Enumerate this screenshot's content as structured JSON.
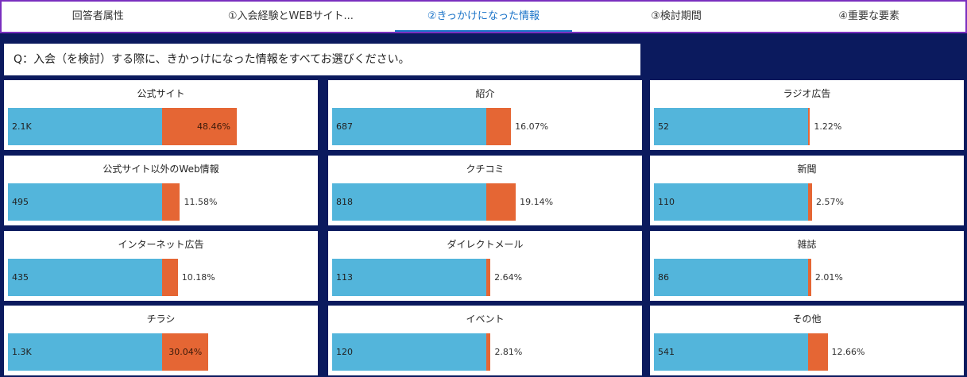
{
  "tabs": [
    "回答者属性",
    "①入会経験とWEBサイト...",
    "②きっかけになった情報",
    "③検討期間",
    "④重要な要素"
  ],
  "question": "Q：入会（を検討）する際に、きかっけになった情報をすべてお選びください。",
  "panels": [
    {
      "name": "公式サイト",
      "count": {
        "value": 2100,
        "label": "2.1K"
      },
      "share": {
        "value": 48.46,
        "label": "48.46%"
      }
    },
    {
      "name": "紹介",
      "count": 687,
      "share": {
        "value": 16.07,
        "label": "16.07%"
      }
    },
    {
      "name": "ラジオ広告",
      "count": 52,
      "share": {
        "value": 1.22,
        "label": "1.22%"
      }
    },
    {
      "name": "公式サイト以外のWeb情報",
      "count": 495,
      "share": {
        "value": 11.58,
        "label": "11.58%"
      }
    },
    {
      "name": "クチコミ",
      "count": 818,
      "share": {
        "value": 19.14,
        "label": "19.14%"
      }
    },
    {
      "name": "新聞",
      "count": 110,
      "share": {
        "value": 2.57,
        "label": "2.57%"
      }
    },
    {
      "name": "インターネット広告",
      "count": 435,
      "share": {
        "value": 10.18,
        "label": "10.18%"
      }
    },
    {
      "name": "ダイレクトメール",
      "count": 113,
      "share": {
        "value": 2.64,
        "label": "2.64%"
      }
    },
    {
      "name": "雑誌",
      "count": 86,
      "share": {
        "value": 2.01,
        "label": "2.01%"
      }
    },
    {
      "name": "チラシ",
      "count": {
        "value": 1300,
        "label": "1.3K"
      },
      "share": {
        "value": 30.04,
        "label": "30.04%"
      }
    },
    {
      "name": "イベント",
      "count": 120,
      "share": {
        "value": 2.81,
        "label": "2.81%"
      }
    },
    {
      "name": "その他",
      "count": 541,
      "share": {
        "value": 12.66,
        "label": "12.66%"
      }
    }
  ]
}
